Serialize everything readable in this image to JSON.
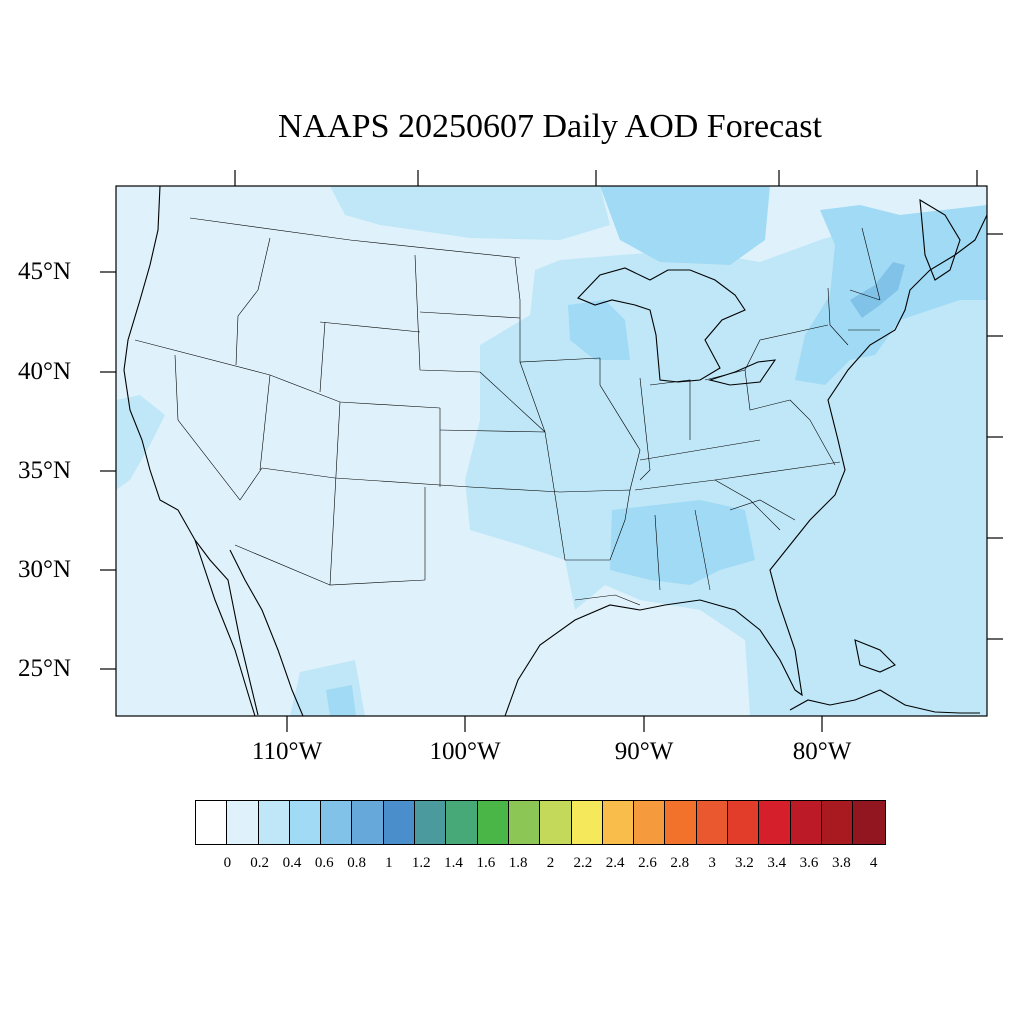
{
  "title": "NAAPS 20250607 Daily AOD Forecast",
  "lat_labels": [
    "45°N",
    "40°N",
    "35°N",
    "30°N",
    "25°N"
  ],
  "lon_labels": [
    "110°W",
    "100°W",
    "90°W",
    "80°W"
  ],
  "colorbar": {
    "colors": [
      "#ffffff",
      "#dff2fb",
      "#bfe7f8",
      "#a0daf5",
      "#80c2e8",
      "#67a8db",
      "#4a8fcb",
      "#4a9a9e",
      "#47a878",
      "#4bb648",
      "#8cc654",
      "#c4d85a",
      "#f6e85b",
      "#f8bd4a",
      "#f59a3d",
      "#f2722c",
      "#ea5830",
      "#e23d2b",
      "#d51f2b",
      "#bd1a28",
      "#a91920",
      "#921620"
    ],
    "labels": [
      "0",
      "0.2",
      "0.4",
      "0.6",
      "0.8",
      "1",
      "1.2",
      "1.4",
      "1.6",
      "1.8",
      "2",
      "2.2",
      "2.4",
      "2.6",
      "2.8",
      "3",
      "3.2",
      "3.4",
      "3.6",
      "3.8",
      "4"
    ]
  }
}
